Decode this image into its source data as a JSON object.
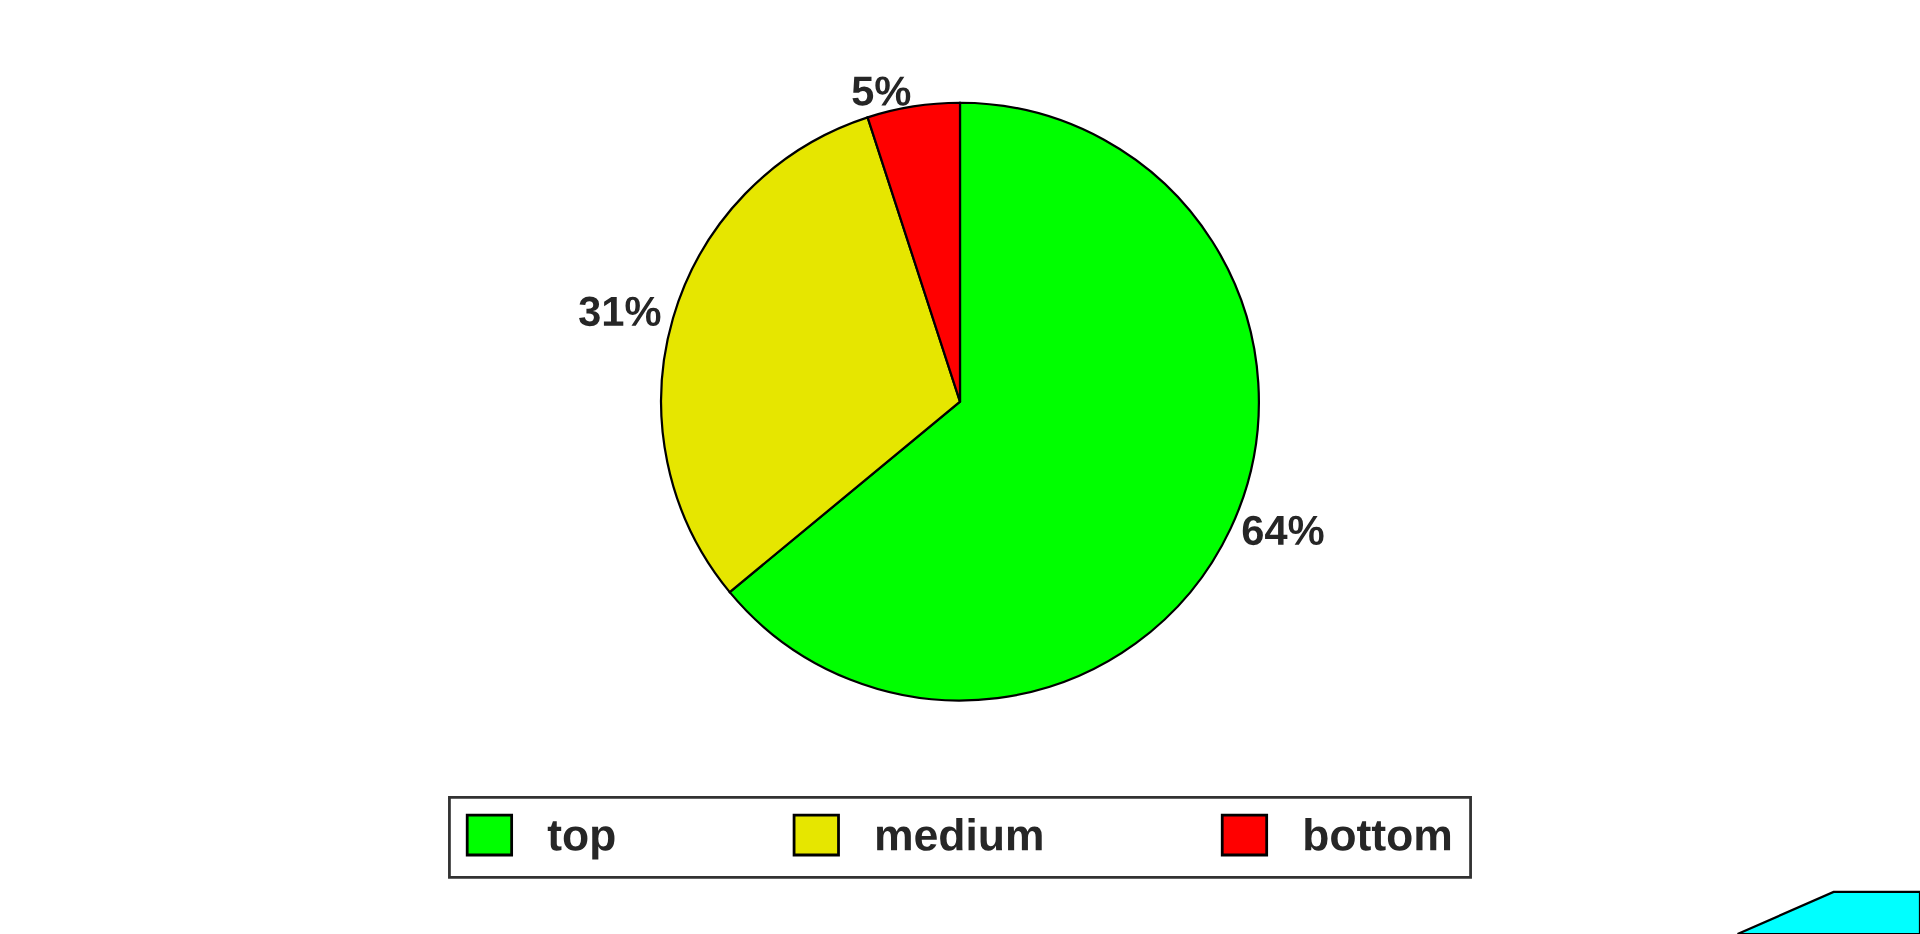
{
  "chart_data": {
    "type": "pie",
    "categories": [
      "top",
      "medium",
      "bottom"
    ],
    "values": [
      64,
      31,
      5
    ],
    "colors": [
      "#00ff00",
      "#e6e600",
      "#ff0000"
    ],
    "value_labels": [
      "64%",
      "31%",
      "5%"
    ],
    "legend": "bottom"
  }
}
